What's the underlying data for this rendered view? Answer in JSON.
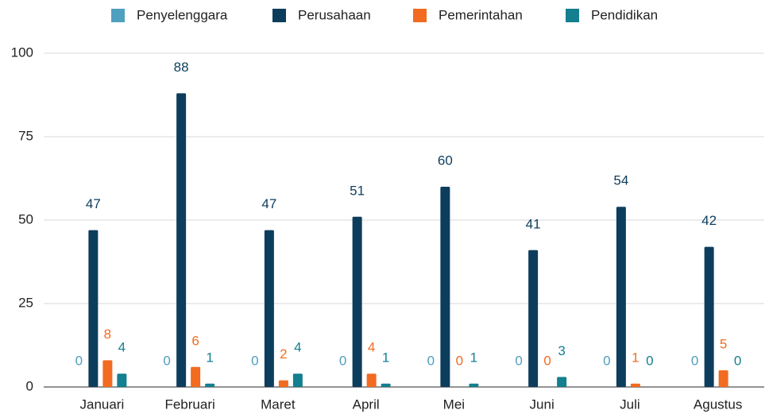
{
  "chart_data": {
    "type": "bar",
    "categories": [
      "Januari",
      "Februari",
      "Maret",
      "April",
      "Mei",
      "Juni",
      "Juli",
      "Agustus"
    ],
    "series": [
      {
        "name": "Penyelenggara",
        "color": "#4f9fbf",
        "values": [
          0,
          0,
          0,
          0,
          0,
          0,
          0,
          0
        ]
      },
      {
        "name": "Perusahaan",
        "color": "#0d3d5c",
        "values": [
          47,
          88,
          47,
          51,
          60,
          41,
          54,
          42
        ]
      },
      {
        "name": "Pemerintahan",
        "color": "#f26b21",
        "values": [
          8,
          6,
          2,
          4,
          0,
          0,
          1,
          5
        ]
      },
      {
        "name": "Pendidikan",
        "color": "#137f8f",
        "values": [
          4,
          1,
          4,
          1,
          1,
          3,
          0,
          0
        ]
      }
    ],
    "ylim": [
      0,
      100
    ],
    "yticks": [
      0,
      25,
      50,
      75,
      100
    ],
    "grid": true,
    "legend": "top"
  }
}
